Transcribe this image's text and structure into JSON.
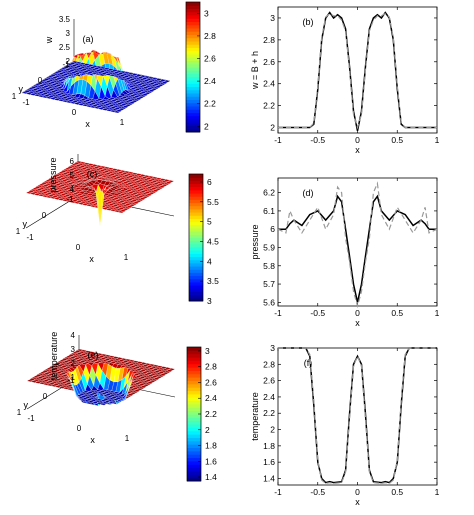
{
  "chart_data": [
    {
      "panel": "a",
      "type": "surface",
      "label": "(a)",
      "xlabel": "x",
      "ylabel": "y",
      "zlabel": "w",
      "x_ticks": [
        "-1",
        "0",
        "1"
      ],
      "y_ticks": [
        "-1",
        "0",
        "1"
      ],
      "z_ticks": [
        "2",
        "2.5",
        "3",
        "3.5"
      ],
      "colorbar": {
        "min": 1.95,
        "max": 3.1,
        "ticks": [
          "2",
          "2.2",
          "2.4",
          "2.6",
          "2.8",
          "3"
        ]
      },
      "zlim": [
        2,
        3.5
      ]
    },
    {
      "panel": "b",
      "type": "line",
      "label": "(b)",
      "xlabel": "x",
      "ylabel": "w = B + h",
      "xlim": [
        -1,
        1
      ],
      "ylim": [
        1.95,
        3.1
      ],
      "x_ticks": [
        "-1",
        "-0.5",
        "0",
        "0.5",
        "1"
      ],
      "y_ticks": [
        "2",
        "2.2",
        "2.4",
        "2.6",
        "2.8",
        "3"
      ],
      "x": [
        -1,
        -0.8,
        -0.6,
        -0.55,
        -0.5,
        -0.45,
        -0.4,
        -0.35,
        -0.3,
        -0.25,
        -0.2,
        -0.15,
        -0.1,
        -0.05,
        0,
        0.05,
        0.1,
        0.15,
        0.2,
        0.25,
        0.3,
        0.35,
        0.4,
        0.45,
        0.5,
        0.55,
        0.6,
        0.8,
        1
      ],
      "series": [
        {
          "style": "solid",
          "values": [
            2.0,
            2.0,
            2.0,
            2.03,
            2.35,
            2.8,
            3.0,
            3.05,
            3.0,
            3.03,
            3.0,
            2.9,
            2.55,
            2.15,
            1.97,
            2.15,
            2.55,
            2.9,
            3.0,
            3.03,
            3.0,
            3.05,
            3.0,
            2.8,
            2.35,
            2.03,
            2.0,
            2.0,
            2.0
          ]
        },
        {
          "style": "dashed",
          "values": [
            2.0,
            2.0,
            2.0,
            2.04,
            2.38,
            2.82,
            3.01,
            3.04,
            3.02,
            3.02,
            2.98,
            2.88,
            2.52,
            2.12,
            2.0,
            2.12,
            2.52,
            2.88,
            2.98,
            3.02,
            3.02,
            3.04,
            3.01,
            2.82,
            2.38,
            2.04,
            2.0,
            2.0,
            2.0
          ]
        }
      ]
    },
    {
      "panel": "c",
      "type": "surface",
      "label": "(c)",
      "xlabel": "x",
      "ylabel": "y",
      "zlabel": "pressure",
      "x_ticks": [
        "-1",
        "0",
        "1"
      ],
      "y_ticks": [
        "-1",
        "0",
        "1"
      ],
      "z_ticks": [
        "4",
        "5",
        "6"
      ],
      "colorbar": {
        "min": 3,
        "max": 6.2,
        "ticks": [
          "3",
          "3.5",
          "4",
          "4.5",
          "5",
          "5.5",
          "6"
        ]
      },
      "zlim": [
        3.5,
        6.5
      ]
    },
    {
      "panel": "d",
      "type": "line",
      "label": "(d)",
      "xlabel": "x",
      "ylabel": "pressure",
      "xlim": [
        -1,
        1
      ],
      "ylim": [
        5.58,
        6.28
      ],
      "x_ticks": [
        "-1",
        "-0.5",
        "0",
        "0.5",
        "1"
      ],
      "y_ticks": [
        "5.6",
        "5.7",
        "5.8",
        "5.9",
        "6",
        "6.1",
        "6.2"
      ],
      "x": [
        -1,
        -0.9,
        -0.85,
        -0.8,
        -0.7,
        -0.6,
        -0.5,
        -0.4,
        -0.3,
        -0.25,
        -0.2,
        -0.15,
        -0.1,
        -0.05,
        0,
        0.05,
        0.1,
        0.15,
        0.2,
        0.25,
        0.3,
        0.4,
        0.5,
        0.6,
        0.7,
        0.8,
        0.85,
        0.9,
        1
      ],
      "series": [
        {
          "style": "solid",
          "values": [
            6.0,
            6.0,
            6.03,
            6.05,
            6.02,
            6.08,
            6.1,
            6.05,
            6.1,
            6.18,
            6.15,
            6.0,
            5.85,
            5.7,
            5.6,
            5.7,
            5.85,
            6.0,
            6.15,
            6.18,
            6.1,
            6.05,
            6.1,
            6.08,
            6.02,
            6.05,
            6.03,
            6.0,
            6.0
          ]
        },
        {
          "style": "dashed",
          "values": [
            6.0,
            5.98,
            6.1,
            6.05,
            5.98,
            6.05,
            6.12,
            6.0,
            6.08,
            6.23,
            6.2,
            5.95,
            5.82,
            5.66,
            5.58,
            5.66,
            5.82,
            5.95,
            6.2,
            6.25,
            6.08,
            6.0,
            6.12,
            6.05,
            5.98,
            6.05,
            6.12,
            5.98,
            6.0
          ]
        }
      ]
    },
    {
      "panel": "e",
      "type": "surface",
      "label": "(e)",
      "xlabel": "x",
      "ylabel": "y",
      "zlabel": "temperature",
      "x_ticks": [
        "-1",
        "0",
        "1"
      ],
      "y_ticks": [
        "-1",
        "0",
        "1"
      ],
      "z_ticks": [
        "1",
        "2",
        "3",
        "4"
      ],
      "colorbar": {
        "min": 1.35,
        "max": 3.05,
        "ticks": [
          "1.4",
          "1.6",
          "1.8",
          "2",
          "2.2",
          "2.4",
          "2.6",
          "2.8",
          "3"
        ]
      },
      "zlim": [
        1,
        4
      ]
    },
    {
      "panel": "f",
      "type": "line",
      "label": "(f)",
      "xlabel": "x",
      "ylabel": "temperature",
      "xlim": [
        -1,
        1
      ],
      "ylim": [
        1.32,
        3.0
      ],
      "x_ticks": [
        "-1",
        "-0.5",
        "0",
        "0.5",
        "1"
      ],
      "y_ticks": [
        "1.4",
        "1.6",
        "1.8",
        "2",
        "2.2",
        "2.4",
        "2.6",
        "2.8",
        "3"
      ],
      "x": [
        -1,
        -0.8,
        -0.65,
        -0.6,
        -0.55,
        -0.5,
        -0.45,
        -0.4,
        -0.35,
        -0.3,
        -0.2,
        -0.15,
        -0.1,
        -0.05,
        0,
        0.05,
        0.1,
        0.15,
        0.2,
        0.3,
        0.35,
        0.4,
        0.45,
        0.5,
        0.55,
        0.6,
        0.65,
        0.8,
        1
      ],
      "series": [
        {
          "style": "solid",
          "values": [
            3.0,
            3.0,
            3.0,
            2.9,
            2.3,
            1.6,
            1.4,
            1.35,
            1.36,
            1.35,
            1.36,
            1.5,
            2.2,
            2.8,
            2.9,
            2.8,
            2.2,
            1.5,
            1.36,
            1.35,
            1.36,
            1.35,
            1.4,
            1.6,
            2.3,
            2.9,
            3.0,
            3.0,
            3.0
          ]
        },
        {
          "style": "dashed",
          "values": [
            3.0,
            3.0,
            3.0,
            2.92,
            2.35,
            1.62,
            1.38,
            1.34,
            1.35,
            1.34,
            1.35,
            1.48,
            2.15,
            2.78,
            2.9,
            2.78,
            2.15,
            1.48,
            1.35,
            1.34,
            1.35,
            1.34,
            1.38,
            1.62,
            2.35,
            2.92,
            3.0,
            3.0,
            3.0
          ]
        }
      ]
    }
  ]
}
